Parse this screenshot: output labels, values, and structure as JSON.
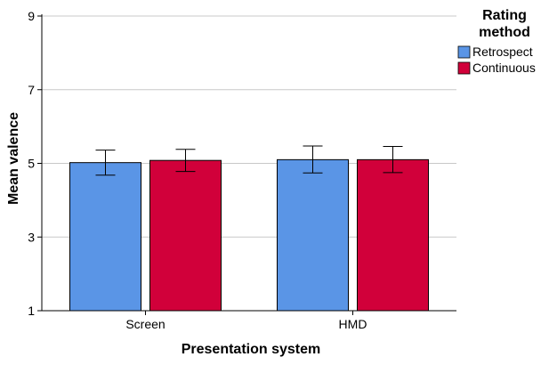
{
  "chart_data": {
    "type": "bar",
    "xlabel": "Presentation system",
    "ylabel": "Mean valence",
    "ylim": [
      1,
      9
    ],
    "yticks": [
      1,
      3,
      5,
      7,
      9
    ],
    "grid": true,
    "legend_position": "top-right",
    "legend_title_lines": [
      "Rating",
      "method"
    ],
    "categories": [
      "Screen",
      "HMD"
    ],
    "series": [
      {
        "name": "Retrospect",
        "color": "#5a95e6",
        "values": [
          5.02,
          5.1
        ],
        "error_low": [
          4.68,
          4.74
        ],
        "error_high": [
          5.36,
          5.47
        ]
      },
      {
        "name": "Continuous",
        "color": "#d1003a",
        "values": [
          5.08,
          5.1
        ],
        "error_low": [
          4.78,
          4.75
        ],
        "error_high": [
          5.38,
          5.46
        ]
      }
    ]
  }
}
